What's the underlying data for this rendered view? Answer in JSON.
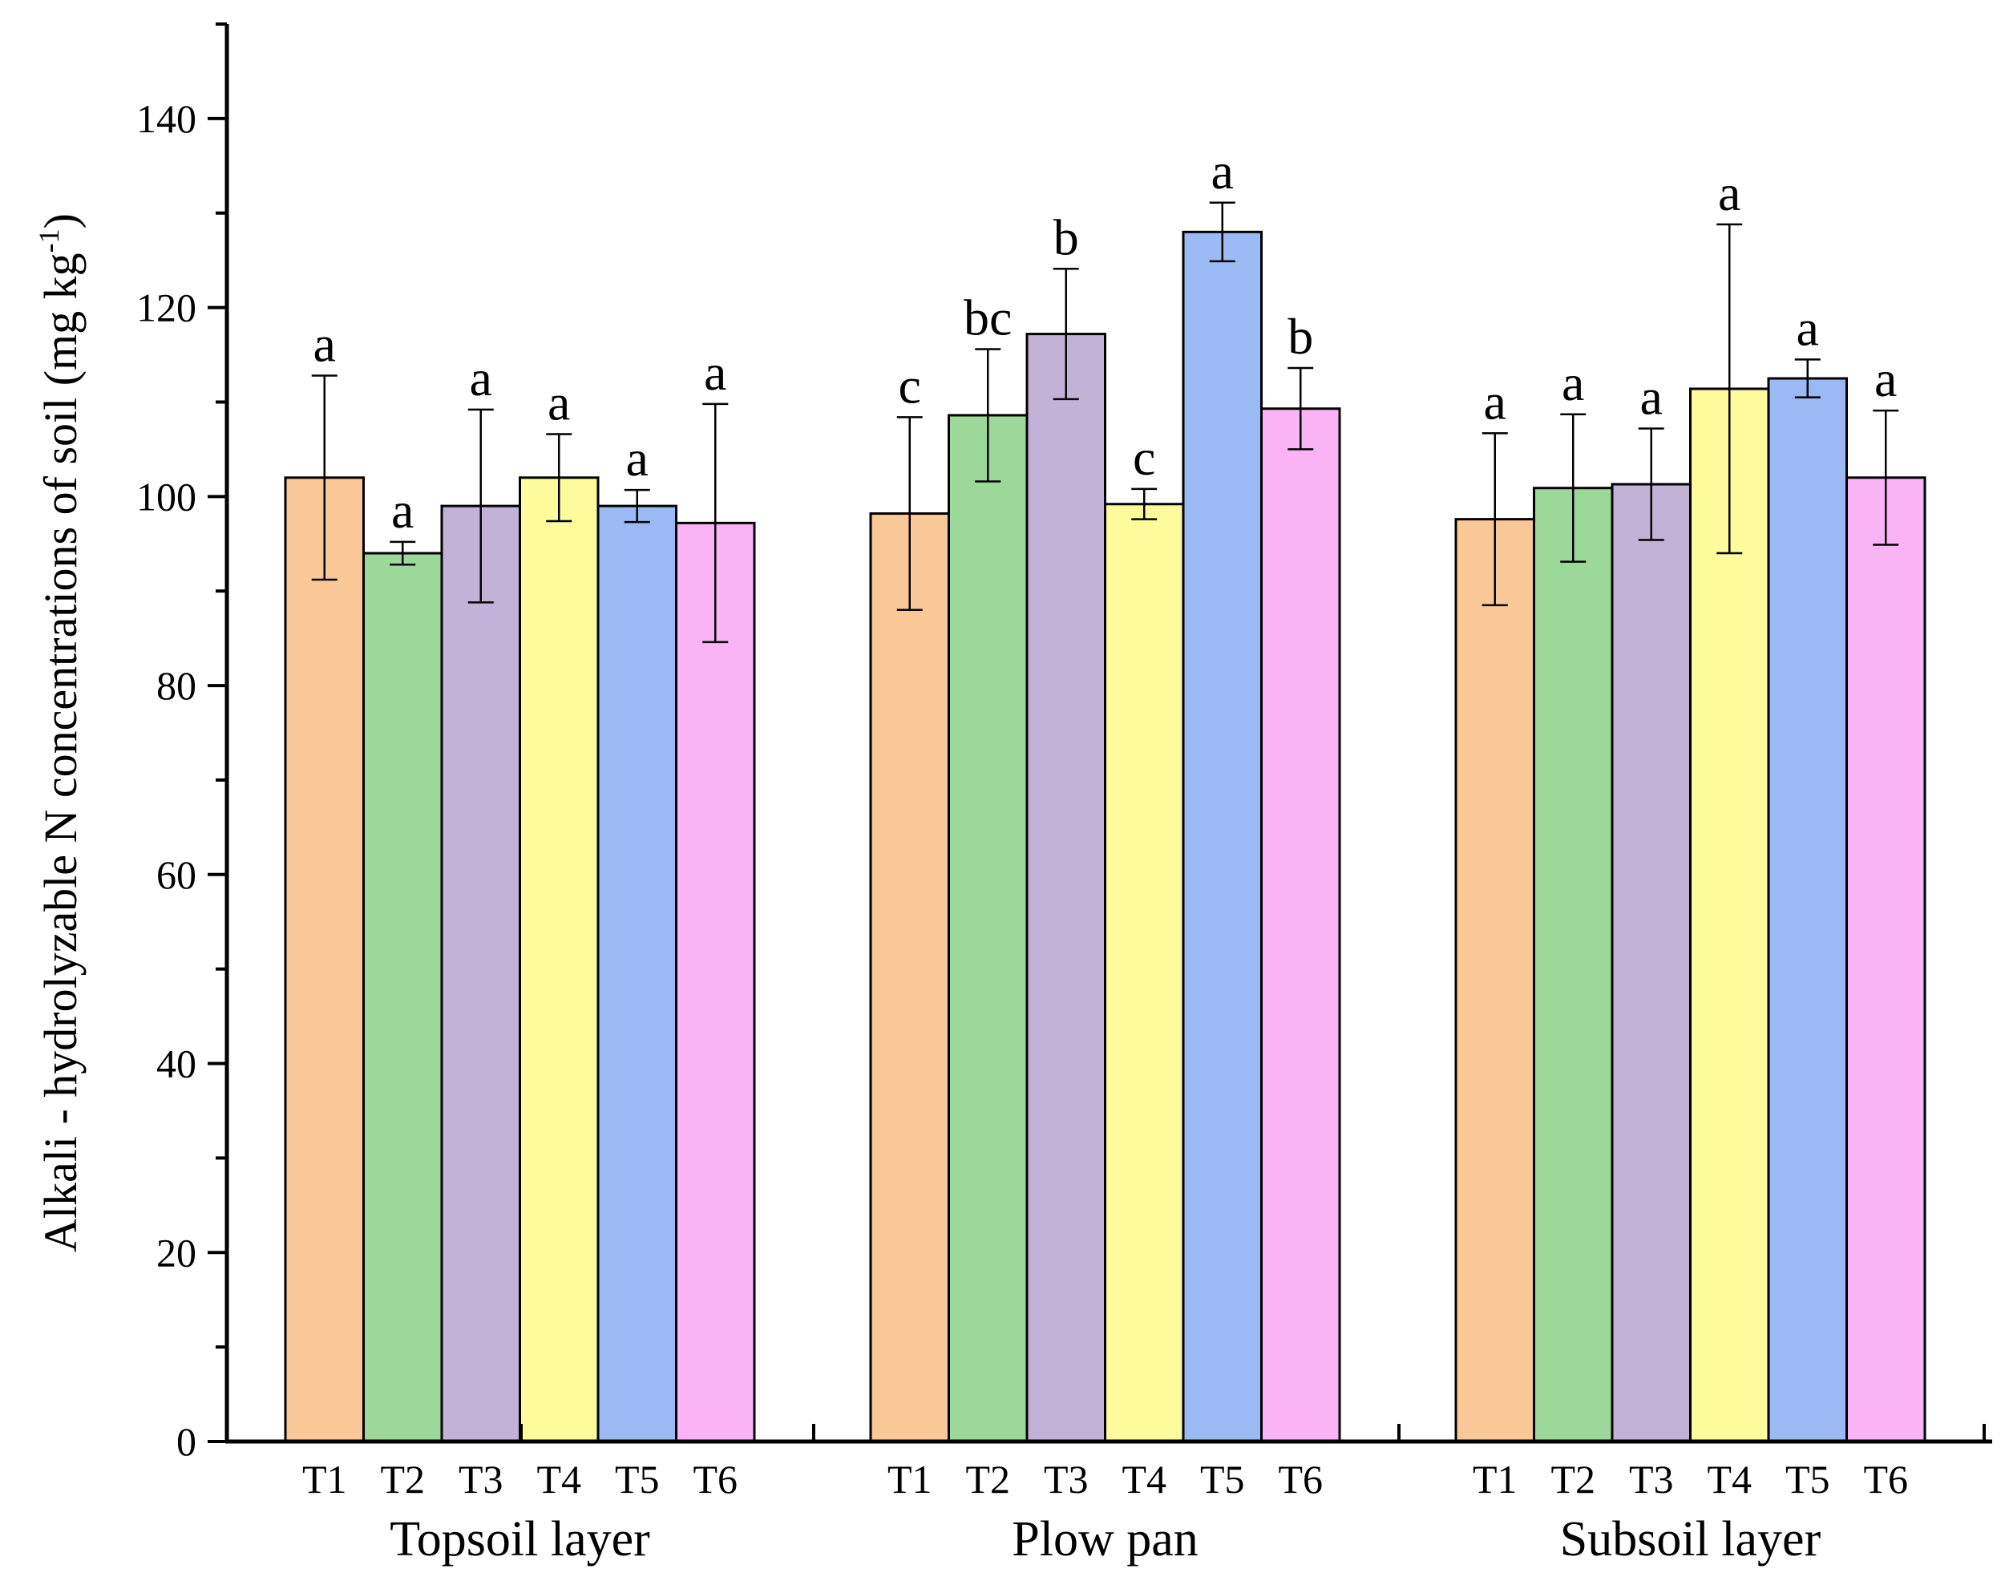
{
  "chart_data": {
    "type": "bar",
    "title": "",
    "ylabel_main": "Alkali - hydrolyzable N concentrations of soil (mg kg",
    "ylabel_sup": "-1",
    "ylabel_close": ")",
    "xlabel": "",
    "ylim": [
      0,
      150
    ],
    "yticks": [
      0,
      20,
      40,
      60,
      80,
      100,
      120,
      140
    ],
    "grid": false,
    "treatments": [
      "T1",
      "T2",
      "T3",
      "T4",
      "T5",
      "T6"
    ],
    "colors": [
      "#FAC896",
      "#9DD89B",
      "#C3B2D7",
      "#FDFB9B",
      "#9BB9F3",
      "#FAB4F6"
    ],
    "groups": [
      {
        "name": "Topsoil layer",
        "values": [
          102,
          94,
          99,
          102,
          99,
          97.2
        ],
        "errors": [
          10.8,
          1.2,
          10.2,
          4.6,
          1.7,
          12.6
        ],
        "letters": [
          "a",
          "a",
          "a",
          "a",
          "a",
          "a"
        ]
      },
      {
        "name": "Plow pan",
        "values": [
          98.2,
          108.6,
          117.2,
          99.2,
          128,
          109.3
        ],
        "errors": [
          10.2,
          7,
          6.9,
          1.6,
          3.1,
          4.3
        ],
        "letters": [
          "c",
          "bc",
          "b",
          "c",
          "a",
          "b"
        ]
      },
      {
        "name": "Subsoil layer",
        "values": [
          97.6,
          100.9,
          101.3,
          111.4,
          112.5,
          102
        ],
        "errors": [
          9.1,
          7.8,
          5.9,
          17.4,
          2,
          7.1
        ],
        "letters": [
          "a",
          "a",
          "a",
          "a",
          "a",
          "a"
        ]
      }
    ]
  }
}
